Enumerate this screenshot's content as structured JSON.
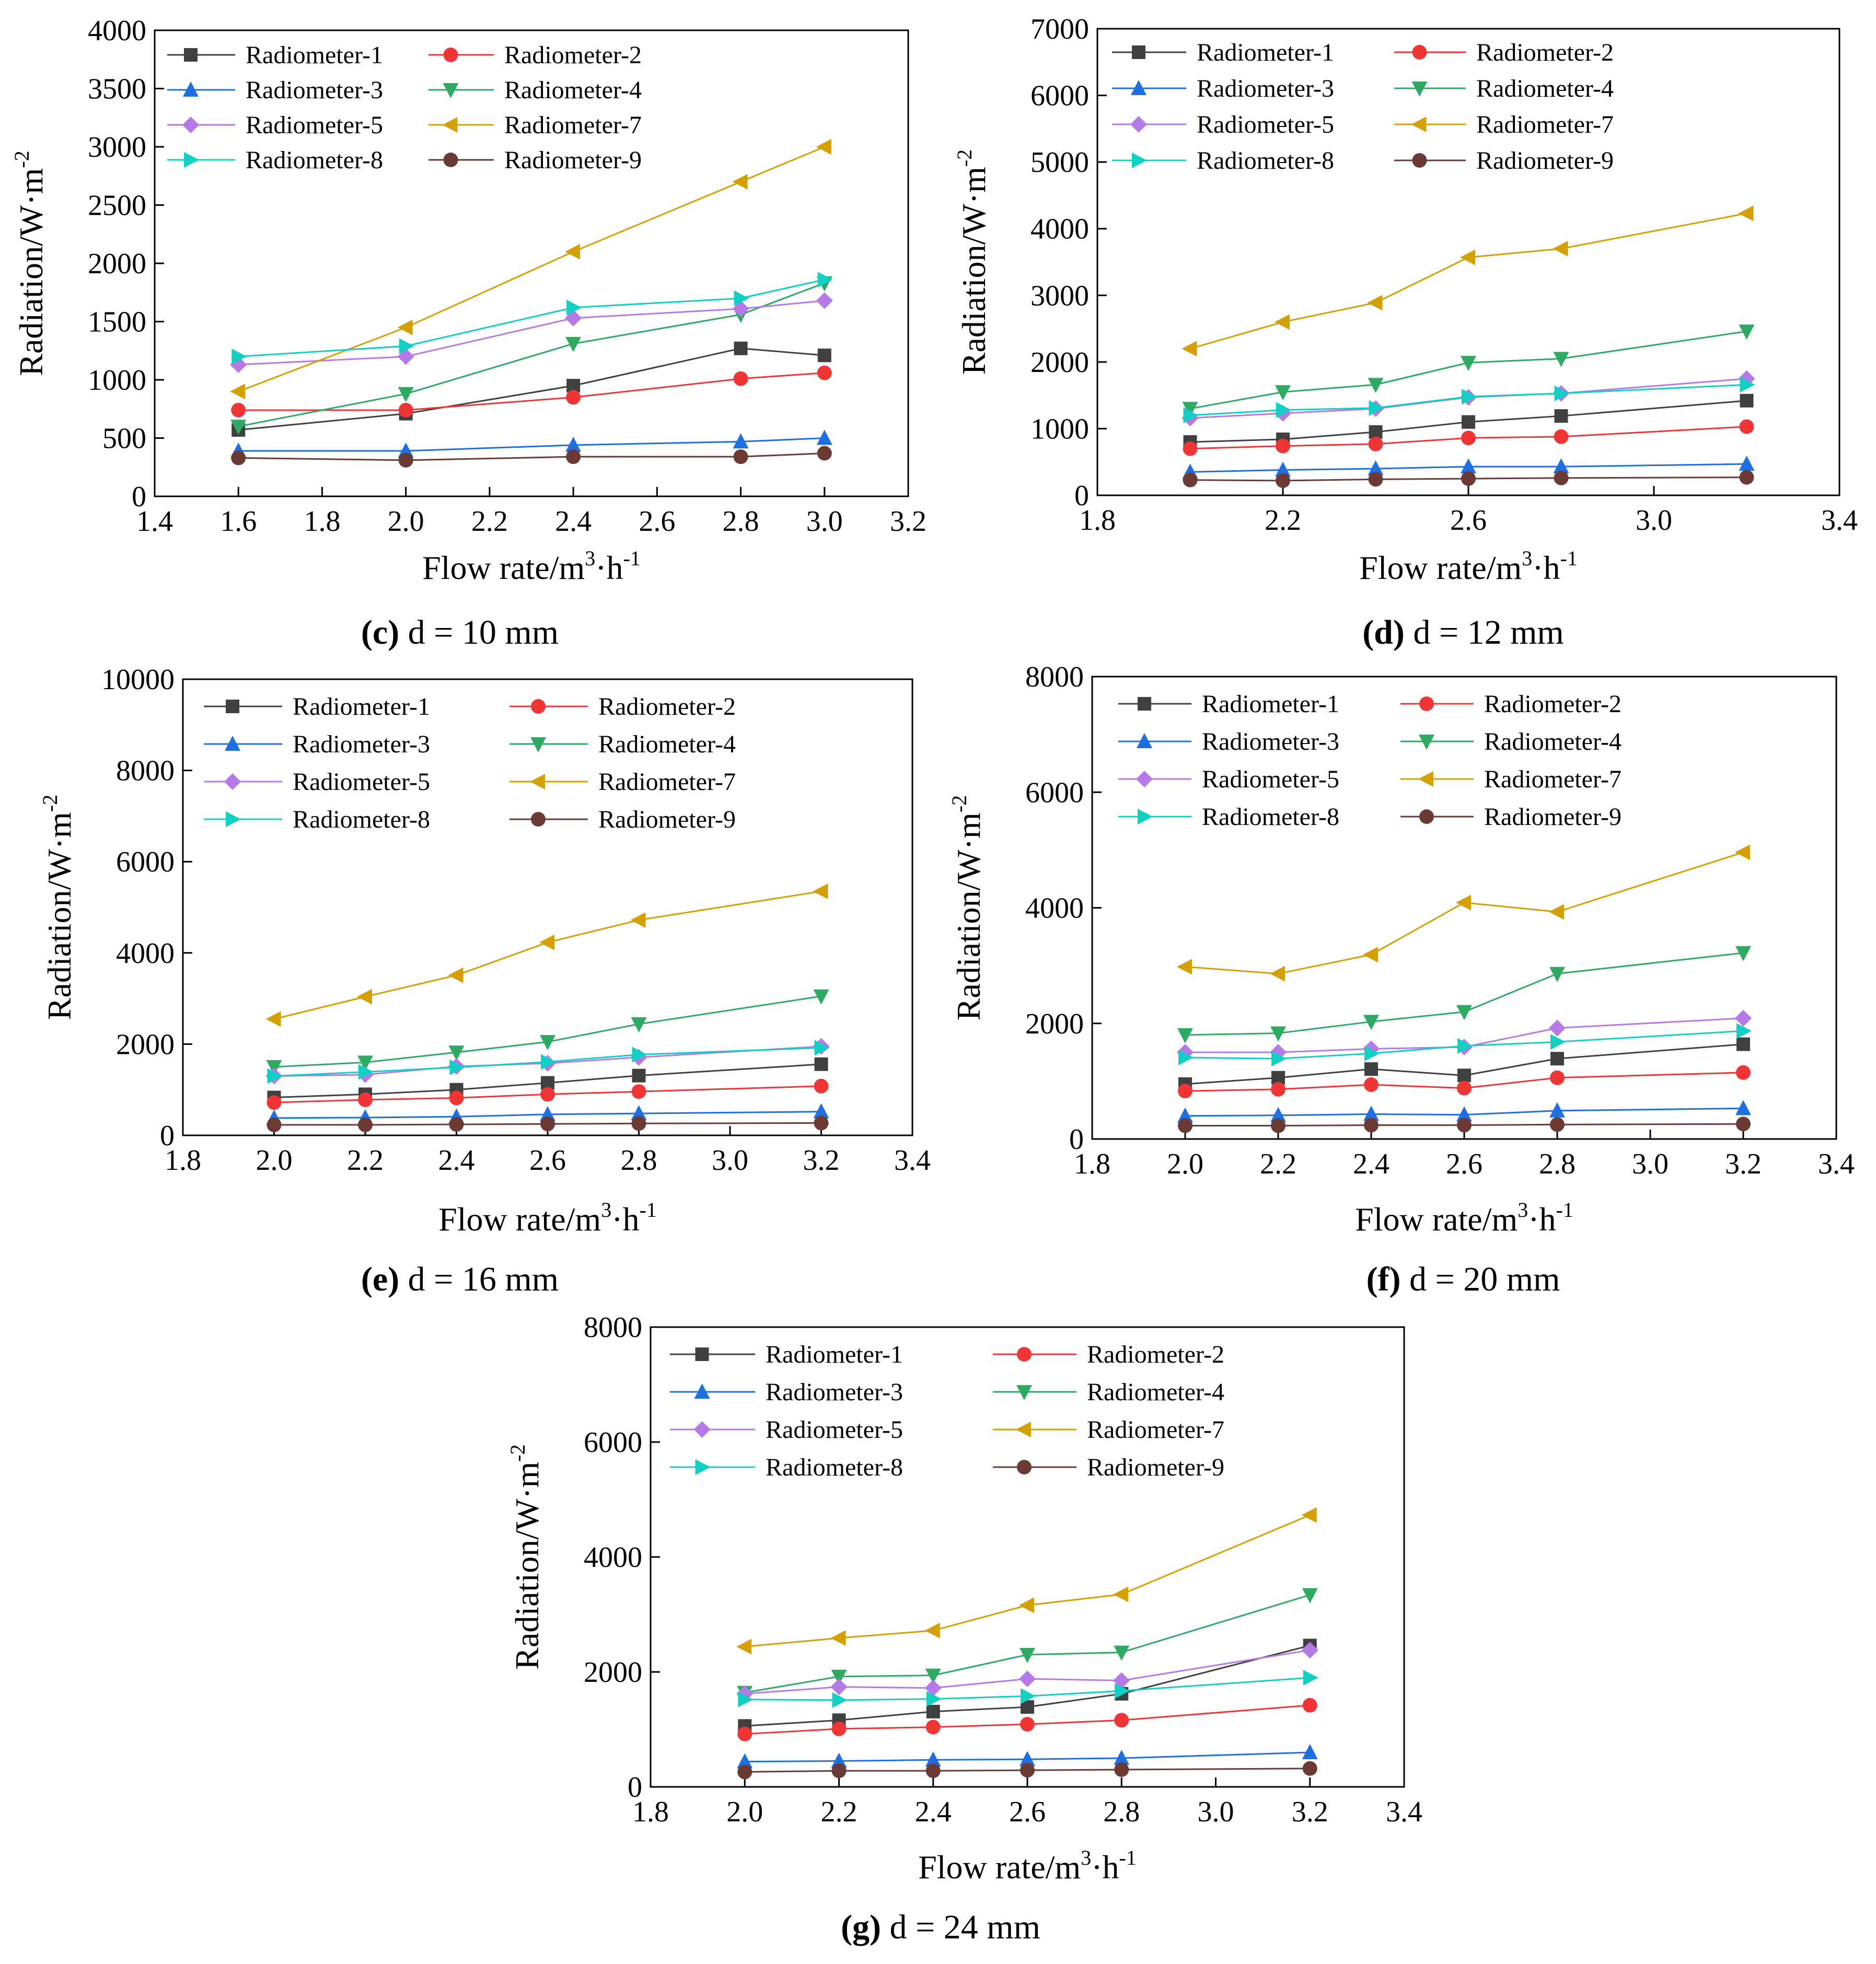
{
  "series_meta": [
    {
      "name": "Radiometer-1",
      "color": "#404040",
      "marker": "square"
    },
    {
      "name": "Radiometer-2",
      "color": "#ef3535",
      "marker": "circle"
    },
    {
      "name": "Radiometer-3",
      "color": "#1f6fe0",
      "marker": "tri-up"
    },
    {
      "name": "Radiometer-4",
      "color": "#2eaa62",
      "marker": "tri-down"
    },
    {
      "name": "Radiometer-5",
      "color": "#b57ae8",
      "marker": "diamond"
    },
    {
      "name": "Radiometer-7",
      "color": "#d4a006",
      "marker": "tri-left"
    },
    {
      "name": "Radiometer-8",
      "color": "#12cfc4",
      "marker": "tri-right"
    },
    {
      "name": "Radiometer-9",
      "color": "#6b3a35",
      "marker": "circle"
    }
  ],
  "chart_data": [
    {
      "id": "c",
      "type": "line",
      "caption": {
        "letter": "(c)",
        "rest": " d = 10 mm"
      },
      "xlabel": {
        "base": "Flow rate/m",
        "sup": "3",
        "tail": "·h",
        "sup2": "-1"
      },
      "ylabel": {
        "base": "Radiation/W·m",
        "sup": "-2"
      },
      "xlim": [
        1.4,
        3.2
      ],
      "ylim": [
        0,
        4000
      ],
      "xticks": [
        "1.4",
        "1.6",
        "1.8",
        "2.0",
        "2.2",
        "2.4",
        "2.6",
        "2.8",
        "3.0",
        "3.2"
      ],
      "yticks": [
        "0",
        "500",
        "1000",
        "1500",
        "2000",
        "2500",
        "3000",
        "3500",
        "4000"
      ],
      "x": [
        1.6,
        2.0,
        2.4,
        2.8,
        3.0
      ],
      "series": [
        {
          "name": "Radiometer-1",
          "values": [
            570,
            710,
            950,
            1270,
            1210
          ]
        },
        {
          "name": "Radiometer-2",
          "values": [
            740,
            740,
            850,
            1010,
            1060
          ]
        },
        {
          "name": "Radiometer-3",
          "values": [
            390,
            390,
            440,
            470,
            500
          ]
        },
        {
          "name": "Radiometer-4",
          "values": [
            600,
            880,
            1310,
            1560,
            1830
          ]
        },
        {
          "name": "Radiometer-5",
          "values": [
            1130,
            1200,
            1530,
            1610,
            1680
          ]
        },
        {
          "name": "Radiometer-7",
          "values": [
            900,
            1450,
            2100,
            2700,
            3000
          ]
        },
        {
          "name": "Radiometer-8",
          "values": [
            1200,
            1290,
            1620,
            1700,
            1860
          ]
        },
        {
          "name": "Radiometer-9",
          "values": [
            330,
            310,
            340,
            340,
            370
          ]
        }
      ]
    },
    {
      "id": "d",
      "type": "line",
      "caption": {
        "letter": "(d)",
        "rest": " d = 12 mm"
      },
      "xlabel": {
        "base": "Flow rate/m",
        "sup": "3",
        "tail": "·h",
        "sup2": "-1"
      },
      "ylabel": {
        "base": "Radiation/W·m",
        "sup": "-2"
      },
      "xlim": [
        1.8,
        3.4
      ],
      "ylim": [
        0,
        7000
      ],
      "xticks": [
        "1.8",
        "2.2",
        "2.6",
        "3.0",
        "3.4"
      ],
      "yticks": [
        "0",
        "1000",
        "2000",
        "3000",
        "4000",
        "5000",
        "6000",
        "7000"
      ],
      "x": [
        2.0,
        2.2,
        2.4,
        2.6,
        2.8,
        3.2
      ],
      "series": [
        {
          "name": "Radiometer-1",
          "values": [
            800,
            840,
            950,
            1100,
            1190,
            1420
          ]
        },
        {
          "name": "Radiometer-2",
          "values": [
            700,
            740,
            770,
            860,
            880,
            1030
          ]
        },
        {
          "name": "Radiometer-3",
          "values": [
            350,
            380,
            400,
            430,
            430,
            470
          ]
        },
        {
          "name": "Radiometer-4",
          "values": [
            1300,
            1550,
            1660,
            1990,
            2050,
            2460
          ]
        },
        {
          "name": "Radiometer-5",
          "values": [
            1160,
            1230,
            1300,
            1470,
            1530,
            1750
          ]
        },
        {
          "name": "Radiometer-7",
          "values": [
            2200,
            2600,
            2890,
            3570,
            3700,
            4230
          ]
        },
        {
          "name": "Radiometer-8",
          "values": [
            1200,
            1280,
            1310,
            1480,
            1530,
            1660
          ]
        },
        {
          "name": "Radiometer-9",
          "values": [
            230,
            220,
            240,
            250,
            260,
            270
          ]
        }
      ]
    },
    {
      "id": "e",
      "type": "line",
      "caption": {
        "letter": "(e)",
        "rest": " d = 16 mm"
      },
      "xlabel": {
        "base": "Flow rate/m",
        "sup": "3",
        "tail": "·h",
        "sup2": "-1"
      },
      "ylabel": {
        "base": "Radiation/W·m",
        "sup": "-2"
      },
      "xlim": [
        1.8,
        3.4
      ],
      "ylim": [
        0,
        10000
      ],
      "xticks": [
        "1.8",
        "2.0",
        "2.2",
        "2.4",
        "2.6",
        "2.8",
        "3.0",
        "3.2",
        "3.4"
      ],
      "yticks": [
        "0",
        "2000",
        "4000",
        "6000",
        "8000",
        "10000"
      ],
      "x": [
        2.0,
        2.2,
        2.4,
        2.6,
        2.8,
        3.2
      ],
      "series": [
        {
          "name": "Radiometer-1",
          "values": [
            830,
            900,
            1000,
            1150,
            1310,
            1560
          ]
        },
        {
          "name": "Radiometer-2",
          "values": [
            720,
            780,
            820,
            900,
            960,
            1080
          ]
        },
        {
          "name": "Radiometer-3",
          "values": [
            380,
            390,
            410,
            460,
            480,
            520
          ]
        },
        {
          "name": "Radiometer-4",
          "values": [
            1500,
            1600,
            1820,
            2050,
            2440,
            3050
          ]
        },
        {
          "name": "Radiometer-5",
          "values": [
            1300,
            1330,
            1510,
            1580,
            1710,
            1950
          ]
        },
        {
          "name": "Radiometer-7",
          "values": [
            2550,
            3040,
            3510,
            4230,
            4720,
            5350
          ]
        },
        {
          "name": "Radiometer-8",
          "values": [
            1300,
            1390,
            1490,
            1610,
            1770,
            1920
          ]
        },
        {
          "name": "Radiometer-9",
          "values": [
            230,
            230,
            240,
            250,
            260,
            270
          ]
        }
      ]
    },
    {
      "id": "f",
      "type": "line",
      "caption": {
        "letter": "(f)",
        "rest": " d = 20 mm"
      },
      "xlabel": {
        "base": "Flow rate/m",
        "sup": "3",
        "tail": "·h",
        "sup2": "-1"
      },
      "ylabel": {
        "base": "Radiation/W·m",
        "sup": "-2"
      },
      "xlim": [
        1.8,
        3.4
      ],
      "ylim": [
        0,
        8000
      ],
      "xticks": [
        "1.8",
        "2.0",
        "2.2",
        "2.4",
        "2.6",
        "2.8",
        "3.0",
        "3.2",
        "3.4"
      ],
      "yticks": [
        "0",
        "2000",
        "4000",
        "6000",
        "8000"
      ],
      "x": [
        2.0,
        2.2,
        2.4,
        2.6,
        2.8,
        3.2
      ],
      "series": [
        {
          "name": "Radiometer-1",
          "values": [
            950,
            1060,
            1210,
            1100,
            1390,
            1640
          ]
        },
        {
          "name": "Radiometer-2",
          "values": [
            830,
            860,
            940,
            880,
            1060,
            1150
          ]
        },
        {
          "name": "Radiometer-3",
          "values": [
            400,
            410,
            430,
            420,
            490,
            530
          ]
        },
        {
          "name": "Radiometer-4",
          "values": [
            1800,
            1830,
            2030,
            2200,
            2860,
            3220
          ]
        },
        {
          "name": "Radiometer-5",
          "values": [
            1500,
            1500,
            1560,
            1590,
            1920,
            2090
          ]
        },
        {
          "name": "Radiometer-7",
          "values": [
            2980,
            2860,
            3190,
            4090,
            3930,
            4960
          ]
        },
        {
          "name": "Radiometer-8",
          "values": [
            1410,
            1390,
            1480,
            1610,
            1680,
            1870
          ]
        },
        {
          "name": "Radiometer-9",
          "values": [
            230,
            230,
            240,
            240,
            250,
            260
          ]
        }
      ]
    },
    {
      "id": "g",
      "type": "line",
      "caption": {
        "letter": "(g)",
        "rest": " d = 24 mm"
      },
      "xlabel": {
        "base": "Flow rate/m",
        "sup": "3",
        "tail": "·h",
        "sup2": "-1"
      },
      "ylabel": {
        "base": "Radiation/W·m",
        "sup": "-2"
      },
      "xlim": [
        1.8,
        3.4
      ],
      "ylim": [
        0,
        8000
      ],
      "xticks": [
        "1.8",
        "2.0",
        "2.2",
        "2.4",
        "2.6",
        "2.8",
        "3.0",
        "3.2",
        "3.4"
      ],
      "yticks": [
        "0",
        "2000",
        "4000",
        "6000",
        "8000"
      ],
      "x": [
        2.0,
        2.2,
        2.4,
        2.6,
        2.8,
        3.2
      ],
      "series": [
        {
          "name": "Radiometer-1",
          "values": [
            1060,
            1160,
            1310,
            1390,
            1620,
            2460
          ]
        },
        {
          "name": "Radiometer-2",
          "values": [
            920,
            1010,
            1040,
            1090,
            1160,
            1420
          ]
        },
        {
          "name": "Radiometer-3",
          "values": [
            440,
            450,
            470,
            480,
            500,
            600
          ]
        },
        {
          "name": "Radiometer-4",
          "values": [
            1640,
            1920,
            1940,
            2300,
            2340,
            3340
          ]
        },
        {
          "name": "Radiometer-5",
          "values": [
            1620,
            1740,
            1720,
            1880,
            1850,
            2380
          ]
        },
        {
          "name": "Radiometer-7",
          "values": [
            2440,
            2590,
            2720,
            3160,
            3350,
            4730
          ]
        },
        {
          "name": "Radiometer-8",
          "values": [
            1520,
            1510,
            1530,
            1580,
            1670,
            1900
          ]
        },
        {
          "name": "Radiometer-9",
          "values": [
            260,
            280,
            280,
            290,
            300,
            320
          ]
        }
      ]
    }
  ]
}
